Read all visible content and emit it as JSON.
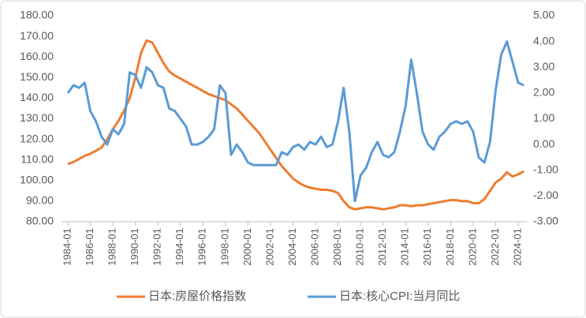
{
  "chart_data": {
    "type": "line",
    "x": [
      "1984-01",
      "1984-07",
      "1985-01",
      "1985-07",
      "1986-01",
      "1986-07",
      "1987-01",
      "1987-07",
      "1988-01",
      "1988-07",
      "1989-01",
      "1989-07",
      "1990-01",
      "1990-07",
      "1991-01",
      "1991-07",
      "1992-01",
      "1992-07",
      "1993-01",
      "1993-07",
      "1994-01",
      "1994-07",
      "1995-01",
      "1995-07",
      "1996-01",
      "1996-07",
      "1997-01",
      "1997-07",
      "1998-01",
      "1998-07",
      "1999-01",
      "1999-07",
      "2000-01",
      "2000-07",
      "2001-01",
      "2001-07",
      "2002-01",
      "2002-07",
      "2003-01",
      "2003-07",
      "2004-01",
      "2004-07",
      "2005-01",
      "2005-07",
      "2006-01",
      "2006-07",
      "2007-01",
      "2007-07",
      "2008-01",
      "2008-07",
      "2009-01",
      "2009-07",
      "2010-01",
      "2010-07",
      "2011-01",
      "2011-07",
      "2012-01",
      "2012-07",
      "2013-01",
      "2013-07",
      "2014-01",
      "2014-07",
      "2015-01",
      "2015-07",
      "2016-01",
      "2016-07",
      "2017-01",
      "2017-07",
      "2018-01",
      "2018-07",
      "2019-01",
      "2019-07",
      "2020-01",
      "2020-07",
      "2021-01",
      "2021-07",
      "2022-01",
      "2022-07",
      "2023-01",
      "2023-07",
      "2024-01",
      "2024-07"
    ],
    "xticks": [
      "1984-01",
      "1986-01",
      "1988-01",
      "1990-01",
      "1992-01",
      "1994-01",
      "1996-01",
      "1998-01",
      "2000-01",
      "2002-01",
      "2004-01",
      "2006-01",
      "2008-01",
      "2010-01",
      "2012-01",
      "2014-01",
      "2016-01",
      "2018-01",
      "2020-01",
      "2022-01",
      "2024-01"
    ],
    "series": [
      {
        "name": "日本:房屋价格指数",
        "color": "#ED7D31",
        "values": [
          108,
          109,
          110.5,
          112,
          113,
          114.5,
          116,
          120,
          125,
          129,
          134,
          140,
          150,
          162,
          168,
          167,
          162,
          157,
          153,
          151,
          149.5,
          148,
          146.5,
          145,
          143.5,
          142,
          141,
          140,
          139,
          137,
          135,
          132,
          129,
          126,
          123,
          119,
          115,
          111,
          107,
          104,
          101,
          99,
          97.5,
          96.5,
          96,
          95.5,
          95.5,
          95,
          94,
          90,
          87,
          86,
          86.5,
          87,
          87,
          86.5,
          86,
          86.5,
          87,
          88,
          88,
          87.5,
          88,
          88,
          88.5,
          89,
          89.5,
          90,
          90.5,
          90.5,
          90,
          90,
          89,
          89,
          91,
          95,
          99,
          101,
          104,
          102,
          103,
          104.5
        ]
      },
      {
        "name": "日本:核心CPI:当月同比",
        "color": "#5B9BD5",
        "axis": "y2",
        "values": [
          2.0,
          2.3,
          2.2,
          2.4,
          1.3,
          0.9,
          0.3,
          0.0,
          0.6,
          0.4,
          0.8,
          2.8,
          2.7,
          2.2,
          3.0,
          2.8,
          2.3,
          2.2,
          1.4,
          1.3,
          1.0,
          0.7,
          0.0,
          0.0,
          0.1,
          0.3,
          0.6,
          2.3,
          2.0,
          -0.4,
          0.0,
          -0.3,
          -0.7,
          -0.8,
          -0.8,
          -0.8,
          -0.8,
          -0.8,
          -0.3,
          -0.4,
          -0.1,
          0.0,
          -0.2,
          0.1,
          0.0,
          0.3,
          -0.1,
          0.0,
          0.9,
          2.2,
          0.5,
          -2.2,
          -1.2,
          -0.9,
          -0.3,
          0.1,
          -0.4,
          -0.5,
          -0.3,
          0.5,
          1.5,
          3.3,
          2.0,
          0.5,
          0.0,
          -0.2,
          0.3,
          0.5,
          0.8,
          0.9,
          0.8,
          0.9,
          0.5,
          -0.5,
          -0.7,
          0.1,
          2.1,
          3.5,
          4.0,
          3.2,
          2.4,
          2.3
        ]
      }
    ],
    "ylim": [
      80,
      180
    ],
    "yticks": [
      {
        "value": 80,
        "label": "80.00"
      },
      {
        "value": 90,
        "label": "90.00"
      },
      {
        "value": 100,
        "label": "100.00"
      },
      {
        "value": 110,
        "label": "110.00"
      },
      {
        "value": 120,
        "label": "120.00"
      },
      {
        "value": 130,
        "label": "130.00"
      },
      {
        "value": 140,
        "label": "140.00"
      },
      {
        "value": 150,
        "label": "150.00"
      },
      {
        "value": 160,
        "label": "160.00"
      },
      {
        "value": 170,
        "label": "170.00"
      },
      {
        "value": 180,
        "label": "180.00"
      }
    ],
    "y2lim": [
      -3,
      5
    ],
    "y2ticks": [
      {
        "value": -3,
        "label": "-3.00"
      },
      {
        "value": -2,
        "label": "-2.00"
      },
      {
        "value": -1,
        "label": "-1.00"
      },
      {
        "value": 0,
        "label": "0.00"
      },
      {
        "value": 1,
        "label": "1.00"
      },
      {
        "value": 2,
        "label": "2.00"
      },
      {
        "value": 3,
        "label": "3.00"
      },
      {
        "value": 4,
        "label": "4.00"
      },
      {
        "value": 5,
        "label": "5.00"
      }
    ],
    "legend": "bottom",
    "grid": false
  }
}
